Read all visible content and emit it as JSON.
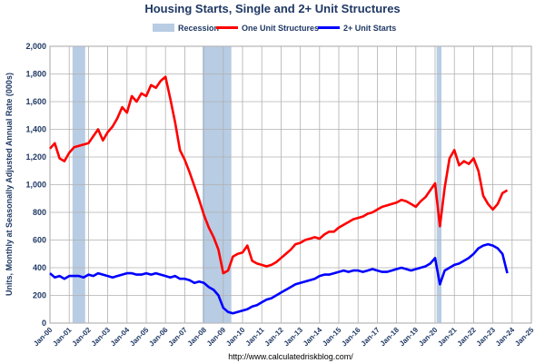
{
  "chart_data": {
    "type": "line",
    "title": "Housing Starts, Single and 2+ Unit Structures",
    "ylabel": "Units, Monthly at Seasonally Adjusted Annual Rate (000s)",
    "xlabel": "",
    "source": "http://www.calculatedriskblog.com/",
    "ylim": [
      0,
      2000
    ],
    "yticks": [
      "0",
      "200",
      "400",
      "600",
      "800",
      "1,000",
      "1,200",
      "1,400",
      "1,600",
      "1,800",
      "2,000"
    ],
    "xlim": [
      2000,
      2025
    ],
    "xticks": [
      "Jan-00",
      "Jan-01",
      "Jan-02",
      "Jan-03",
      "Jan-04",
      "Jan-05",
      "Jan-06",
      "Jan-07",
      "Jan-08",
      "Jan-09",
      "Jan-10",
      "Jan-11",
      "Jan-12",
      "Jan-13",
      "Jan-14",
      "Jan-15",
      "Jan-16",
      "Jan-17",
      "Jan-18",
      "Jan-19",
      "Jan-20",
      "Jan-21",
      "Jan-22",
      "Jan-23",
      "Jan-24",
      "Jan-25"
    ],
    "grid": true,
    "legend_position": "top",
    "recessions": [
      {
        "start": 2001.17,
        "end": 2001.83
      },
      {
        "start": 2007.92,
        "end": 2009.42
      },
      {
        "start": 2020.08,
        "end": 2020.33
      }
    ],
    "series": [
      {
        "name": "Recession",
        "color": "#b8cce4",
        "kind": "band"
      },
      {
        "name": "One Unit Structures",
        "color": "#ff0000",
        "kind": "line",
        "points": [
          [
            2000.0,
            1260
          ],
          [
            2000.25,
            1300
          ],
          [
            2000.5,
            1190
          ],
          [
            2000.75,
            1170
          ],
          [
            2001.0,
            1230
          ],
          [
            2001.25,
            1270
          ],
          [
            2001.5,
            1280
          ],
          [
            2001.75,
            1290
          ],
          [
            2002.0,
            1300
          ],
          [
            2002.25,
            1350
          ],
          [
            2002.5,
            1400
          ],
          [
            2002.75,
            1320
          ],
          [
            2003.0,
            1380
          ],
          [
            2003.25,
            1420
          ],
          [
            2003.5,
            1480
          ],
          [
            2003.75,
            1560
          ],
          [
            2004.0,
            1520
          ],
          [
            2004.25,
            1640
          ],
          [
            2004.5,
            1600
          ],
          [
            2004.75,
            1660
          ],
          [
            2005.0,
            1640
          ],
          [
            2005.25,
            1720
          ],
          [
            2005.5,
            1700
          ],
          [
            2005.75,
            1750
          ],
          [
            2006.0,
            1780
          ],
          [
            2006.25,
            1620
          ],
          [
            2006.5,
            1450
          ],
          [
            2006.75,
            1250
          ],
          [
            2007.0,
            1180
          ],
          [
            2007.25,
            1090
          ],
          [
            2007.5,
            990
          ],
          [
            2007.75,
            890
          ],
          [
            2008.0,
            780
          ],
          [
            2008.25,
            690
          ],
          [
            2008.5,
            620
          ],
          [
            2008.75,
            530
          ],
          [
            2009.0,
            360
          ],
          [
            2009.25,
            380
          ],
          [
            2009.5,
            480
          ],
          [
            2009.75,
            500
          ],
          [
            2010.0,
            510
          ],
          [
            2010.25,
            560
          ],
          [
            2010.5,
            450
          ],
          [
            2010.75,
            430
          ],
          [
            2011.0,
            420
          ],
          [
            2011.25,
            410
          ],
          [
            2011.5,
            420
          ],
          [
            2011.75,
            440
          ],
          [
            2012.0,
            470
          ],
          [
            2012.25,
            500
          ],
          [
            2012.5,
            530
          ],
          [
            2012.75,
            570
          ],
          [
            2013.0,
            580
          ],
          [
            2013.25,
            600
          ],
          [
            2013.5,
            610
          ],
          [
            2013.75,
            620
          ],
          [
            2014.0,
            610
          ],
          [
            2014.25,
            640
          ],
          [
            2014.5,
            660
          ],
          [
            2014.75,
            660
          ],
          [
            2015.0,
            690
          ],
          [
            2015.25,
            710
          ],
          [
            2015.5,
            730
          ],
          [
            2015.75,
            750
          ],
          [
            2016.0,
            760
          ],
          [
            2016.25,
            770
          ],
          [
            2016.5,
            790
          ],
          [
            2016.75,
            800
          ],
          [
            2017.0,
            820
          ],
          [
            2017.25,
            840
          ],
          [
            2017.5,
            850
          ],
          [
            2017.75,
            860
          ],
          [
            2018.0,
            870
          ],
          [
            2018.25,
            890
          ],
          [
            2018.5,
            880
          ],
          [
            2018.75,
            860
          ],
          [
            2019.0,
            840
          ],
          [
            2019.25,
            880
          ],
          [
            2019.5,
            910
          ],
          [
            2019.75,
            960
          ],
          [
            2020.0,
            1010
          ],
          [
            2020.25,
            700
          ],
          [
            2020.5,
            980
          ],
          [
            2020.75,
            1190
          ],
          [
            2021.0,
            1250
          ],
          [
            2021.25,
            1140
          ],
          [
            2021.5,
            1170
          ],
          [
            2021.75,
            1150
          ],
          [
            2022.0,
            1190
          ],
          [
            2022.25,
            1100
          ],
          [
            2022.5,
            920
          ],
          [
            2022.75,
            860
          ],
          [
            2023.0,
            820
          ],
          [
            2023.25,
            860
          ],
          [
            2023.5,
            940
          ],
          [
            2023.75,
            960
          ]
        ]
      },
      {
        "name": "2+ Unit Starts",
        "color": "#0000ff",
        "kind": "line",
        "points": [
          [
            2000.0,
            360
          ],
          [
            2000.25,
            330
          ],
          [
            2000.5,
            340
          ],
          [
            2000.75,
            320
          ],
          [
            2001.0,
            340
          ],
          [
            2001.25,
            340
          ],
          [
            2001.5,
            340
          ],
          [
            2001.75,
            330
          ],
          [
            2002.0,
            350
          ],
          [
            2002.25,
            340
          ],
          [
            2002.5,
            360
          ],
          [
            2002.75,
            350
          ],
          [
            2003.0,
            340
          ],
          [
            2003.25,
            330
          ],
          [
            2003.5,
            340
          ],
          [
            2003.75,
            350
          ],
          [
            2004.0,
            360
          ],
          [
            2004.25,
            360
          ],
          [
            2004.5,
            350
          ],
          [
            2004.75,
            350
          ],
          [
            2005.0,
            360
          ],
          [
            2005.25,
            350
          ],
          [
            2005.5,
            360
          ],
          [
            2005.75,
            350
          ],
          [
            2006.0,
            340
          ],
          [
            2006.25,
            330
          ],
          [
            2006.5,
            340
          ],
          [
            2006.75,
            320
          ],
          [
            2007.0,
            320
          ],
          [
            2007.25,
            310
          ],
          [
            2007.5,
            290
          ],
          [
            2007.75,
            300
          ],
          [
            2008.0,
            290
          ],
          [
            2008.25,
            260
          ],
          [
            2008.5,
            240
          ],
          [
            2008.75,
            200
          ],
          [
            2009.0,
            110
          ],
          [
            2009.25,
            80
          ],
          [
            2009.5,
            70
          ],
          [
            2009.75,
            80
          ],
          [
            2010.0,
            90
          ],
          [
            2010.25,
            100
          ],
          [
            2010.5,
            120
          ],
          [
            2010.75,
            130
          ],
          [
            2011.0,
            150
          ],
          [
            2011.25,
            170
          ],
          [
            2011.5,
            180
          ],
          [
            2011.75,
            200
          ],
          [
            2012.0,
            220
          ],
          [
            2012.25,
            240
          ],
          [
            2012.5,
            260
          ],
          [
            2012.75,
            280
          ],
          [
            2013.0,
            290
          ],
          [
            2013.25,
            300
          ],
          [
            2013.5,
            310
          ],
          [
            2013.75,
            320
          ],
          [
            2014.0,
            340
          ],
          [
            2014.25,
            350
          ],
          [
            2014.5,
            350
          ],
          [
            2014.75,
            360
          ],
          [
            2015.0,
            370
          ],
          [
            2015.25,
            380
          ],
          [
            2015.5,
            370
          ],
          [
            2015.75,
            380
          ],
          [
            2016.0,
            380
          ],
          [
            2016.25,
            370
          ],
          [
            2016.5,
            380
          ],
          [
            2016.75,
            390
          ],
          [
            2017.0,
            380
          ],
          [
            2017.25,
            370
          ],
          [
            2017.5,
            370
          ],
          [
            2017.75,
            380
          ],
          [
            2018.0,
            390
          ],
          [
            2018.25,
            400
          ],
          [
            2018.5,
            390
          ],
          [
            2018.75,
            380
          ],
          [
            2019.0,
            390
          ],
          [
            2019.25,
            400
          ],
          [
            2019.5,
            410
          ],
          [
            2019.75,
            430
          ],
          [
            2020.0,
            470
          ],
          [
            2020.25,
            280
          ],
          [
            2020.5,
            380
          ],
          [
            2020.75,
            400
          ],
          [
            2021.0,
            420
          ],
          [
            2021.25,
            430
          ],
          [
            2021.5,
            450
          ],
          [
            2021.75,
            470
          ],
          [
            2022.0,
            500
          ],
          [
            2022.25,
            540
          ],
          [
            2022.5,
            560
          ],
          [
            2022.75,
            570
          ],
          [
            2023.0,
            560
          ],
          [
            2023.25,
            540
          ],
          [
            2023.5,
            500
          ],
          [
            2023.75,
            360
          ]
        ]
      }
    ]
  }
}
